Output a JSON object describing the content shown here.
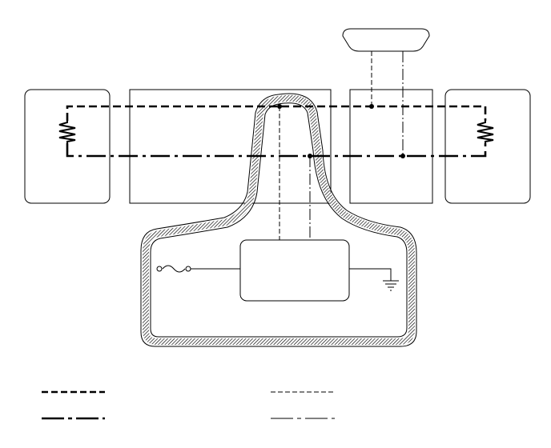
{
  "diagram": {
    "kind": "wiring-schematic",
    "stroke_color": "#000000",
    "background_color": "#ffffff",
    "legend": [
      {
        "style": "thick-dashed",
        "label": ""
      },
      {
        "style": "thin-dashed",
        "label": ""
      },
      {
        "style": "thick-dash-dot",
        "label": ""
      },
      {
        "style": "thin-dash-dot",
        "label": ""
      }
    ]
  }
}
